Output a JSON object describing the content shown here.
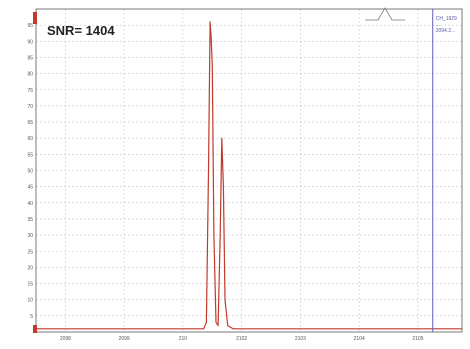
{
  "snr_label": "SNR= 1404",
  "logo_text": "",
  "colors": {
    "signal": "#c0392b",
    "cursor": "#6060c0",
    "grid": "#c8c8c8",
    "frame": "#7a7a7a"
  },
  "chart_data": {
    "type": "line",
    "title": "",
    "xlabel": "",
    "ylabel": "",
    "xlim": [
      2098.0,
      2106.0
    ],
    "ylim": [
      0,
      100
    ],
    "x_ticks": [
      "2098",
      "2099",
      "210",
      "2102",
      "2103",
      "2104",
      "2105"
    ],
    "y_ticks": [
      "5",
      "10",
      "15",
      "20",
      "25",
      "30",
      "35",
      "40",
      "45",
      "50",
      "55",
      "60",
      "65",
      "70",
      "75",
      "80",
      "85",
      "90",
      "95"
    ],
    "grid": true,
    "series": [
      {
        "values": [
          [
            2098.0,
            1.0
          ],
          [
            2101.15,
            1.0
          ],
          [
            2101.2,
            3.0
          ],
          [
            2101.24,
            50.0
          ],
          [
            2101.27,
            96.0
          ],
          [
            2101.29,
            91.0
          ],
          [
            2101.31,
            82.0
          ],
          [
            2101.34,
            30.0
          ],
          [
            2101.38,
            3.0
          ],
          [
            2101.42,
            2.0
          ],
          [
            2101.46,
            30.0
          ],
          [
            2101.49,
            60.0
          ],
          [
            2101.52,
            45.0
          ],
          [
            2101.55,
            10.0
          ],
          [
            2101.6,
            2.0
          ],
          [
            2101.7,
            1.0
          ],
          [
            2106.0,
            1.0
          ]
        ]
      }
    ],
    "cursor": {
      "x": 2105.45,
      "readout": [
        "CH_1929",
        "...",
        "2094.2..."
      ]
    }
  }
}
